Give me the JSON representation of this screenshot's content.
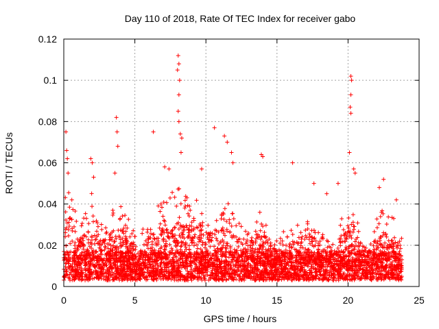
{
  "chart_data": {
    "type": "scatter",
    "title": "Day 110 of 2018, Rate Of TEC Index for receiver gabo",
    "xlabel": "GPS time / hours",
    "ylabel": "ROTI / TECUs",
    "xlim": [
      0,
      25
    ],
    "ylim": [
      0,
      0.12
    ],
    "xticks": [
      0,
      5,
      10,
      15,
      20,
      25
    ],
    "xtick_labels": [
      "0",
      "5",
      "10",
      "15",
      "20",
      "25"
    ],
    "yticks": [
      0,
      0.02,
      0.04,
      0.06,
      0.08,
      0.1,
      0.12
    ],
    "ytick_labels": [
      "0",
      "0.02",
      "0.04",
      "0.06",
      "0.08",
      "0.1",
      "0.12"
    ],
    "grid": true,
    "marker": "+",
    "color": "#ff0000",
    "data_extent_hours": [
      0,
      23.8
    ],
    "envelope": [
      [
        0.0,
        0.045
      ],
      [
        0.5,
        0.045
      ],
      [
        1.0,
        0.028
      ],
      [
        1.5,
        0.032
      ],
      [
        2.0,
        0.048
      ],
      [
        2.5,
        0.03
      ],
      [
        3.0,
        0.03
      ],
      [
        3.5,
        0.035
      ],
      [
        4.0,
        0.036
      ],
      [
        4.5,
        0.03
      ],
      [
        5.0,
        0.026
      ],
      [
        5.5,
        0.025
      ],
      [
        6.0,
        0.03
      ],
      [
        6.5,
        0.036
      ],
      [
        7.0,
        0.042
      ],
      [
        7.5,
        0.044
      ],
      [
        8.0,
        0.048
      ],
      [
        8.5,
        0.042
      ],
      [
        9.0,
        0.038
      ],
      [
        9.5,
        0.04
      ],
      [
        10.0,
        0.038
      ],
      [
        10.5,
        0.036
      ],
      [
        11.0,
        0.034
      ],
      [
        11.5,
        0.038
      ],
      [
        12.0,
        0.032
      ],
      [
        12.5,
        0.028
      ],
      [
        13.0,
        0.028
      ],
      [
        13.5,
        0.032
      ],
      [
        14.0,
        0.036
      ],
      [
        14.5,
        0.025
      ],
      [
        15.0,
        0.022
      ],
      [
        15.5,
        0.024
      ],
      [
        16.0,
        0.026
      ],
      [
        16.5,
        0.03
      ],
      [
        17.0,
        0.032
      ],
      [
        17.5,
        0.03
      ],
      [
        18.0,
        0.025
      ],
      [
        18.5,
        0.02
      ],
      [
        19.0,
        0.024
      ],
      [
        19.5,
        0.03
      ],
      [
        20.0,
        0.04
      ],
      [
        20.5,
        0.038
      ],
      [
        21.0,
        0.025
      ],
      [
        21.5,
        0.02
      ],
      [
        22.0,
        0.03
      ],
      [
        22.5,
        0.035
      ],
      [
        23.0,
        0.032
      ],
      [
        23.5,
        0.03
      ]
    ],
    "spikes": [
      [
        0.15,
        0.075
      ],
      [
        0.2,
        0.066
      ],
      [
        0.25,
        0.062
      ],
      [
        0.3,
        0.055
      ],
      [
        1.9,
        0.062
      ],
      [
        2.0,
        0.06
      ],
      [
        2.1,
        0.053
      ],
      [
        3.7,
        0.082
      ],
      [
        3.75,
        0.075
      ],
      [
        3.8,
        0.068
      ],
      [
        3.6,
        0.055
      ],
      [
        6.3,
        0.075
      ],
      [
        7.1,
        0.058
      ],
      [
        7.4,
        0.057
      ],
      [
        8.05,
        0.112
      ],
      [
        8.1,
        0.108
      ],
      [
        8.0,
        0.105
      ],
      [
        8.15,
        0.1
      ],
      [
        8.1,
        0.093
      ],
      [
        8.05,
        0.085
      ],
      [
        8.1,
        0.08
      ],
      [
        8.2,
        0.074
      ],
      [
        8.3,
        0.072
      ],
      [
        8.25,
        0.065
      ],
      [
        9.7,
        0.057
      ],
      [
        10.6,
        0.077
      ],
      [
        11.3,
        0.073
      ],
      [
        11.5,
        0.07
      ],
      [
        11.8,
        0.065
      ],
      [
        11.9,
        0.06
      ],
      [
        13.9,
        0.064
      ],
      [
        14.0,
        0.063
      ],
      [
        16.1,
        0.06
      ],
      [
        17.6,
        0.05
      ],
      [
        18.5,
        0.045
      ],
      [
        19.3,
        0.05
      ],
      [
        20.2,
        0.102
      ],
      [
        20.25,
        0.1
      ],
      [
        20.2,
        0.093
      ],
      [
        20.15,
        0.087
      ],
      [
        20.2,
        0.084
      ],
      [
        20.1,
        0.065
      ],
      [
        20.4,
        0.057
      ],
      [
        20.5,
        0.055
      ],
      [
        22.2,
        0.048
      ],
      [
        22.5,
        0.052
      ],
      [
        23.4,
        0.042
      ]
    ]
  }
}
